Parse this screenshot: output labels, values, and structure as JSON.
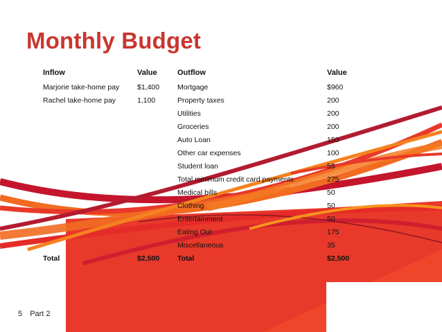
{
  "title": "Monthly Budget",
  "headers": {
    "inflow": "Inflow",
    "inflow_value": "Value",
    "outflow": "Outflow",
    "outflow_value": "Value"
  },
  "rows": [
    {
      "inflow": "Marjorie take-home pay",
      "inflow_value": "$1,400",
      "outflow": "Mortgage",
      "outflow_value": "$960"
    },
    {
      "inflow": "Rachel take-home pay",
      "inflow_value": "1,100",
      "outflow": "Property taxes",
      "outflow_value": "200"
    },
    {
      "inflow": "",
      "inflow_value": "",
      "outflow": "Utilities",
      "outflow_value": "200"
    },
    {
      "inflow": "",
      "inflow_value": "",
      "outflow": "Groceries",
      "outflow_value": "200"
    },
    {
      "inflow": "",
      "inflow_value": "",
      "outflow": "Auto Loan",
      "outflow_value": "150"
    },
    {
      "inflow": "",
      "inflow_value": "",
      "outflow": "Other car expenses",
      "outflow_value": "100"
    },
    {
      "inflow": "",
      "inflow_value": "",
      "outflow": "Student loan",
      "outflow_value": "55"
    },
    {
      "inflow": "",
      "inflow_value": "",
      "outflow": "Total minimum credit card payments",
      "outflow_value": "275"
    },
    {
      "inflow": "",
      "inflow_value": "",
      "outflow": "Medical bills",
      "outflow_value": "50"
    },
    {
      "inflow": "",
      "inflow_value": "",
      "outflow": "Clothing",
      "outflow_value": "50"
    },
    {
      "inflow": "",
      "inflow_value": "",
      "outflow": "Entertainment",
      "outflow_value": "50"
    },
    {
      "inflow": "",
      "inflow_value": "",
      "outflow": "Eating Out",
      "outflow_value": "175"
    },
    {
      "inflow": "",
      "inflow_value": "",
      "outflow": "Miscellaneous",
      "outflow_value": "35"
    }
  ],
  "totals": {
    "inflow_label": "Total",
    "inflow_value": "$2,500",
    "outflow_label": "Total",
    "outflow_value": "$2,500"
  },
  "footer": {
    "slide_number": "5",
    "section": "Part 2"
  },
  "colors": {
    "title": "#c9362f",
    "ribbon_red": "#e8392a",
    "ribbon_orange": "#f26b21",
    "ribbon_dark": "#b31b2f"
  }
}
